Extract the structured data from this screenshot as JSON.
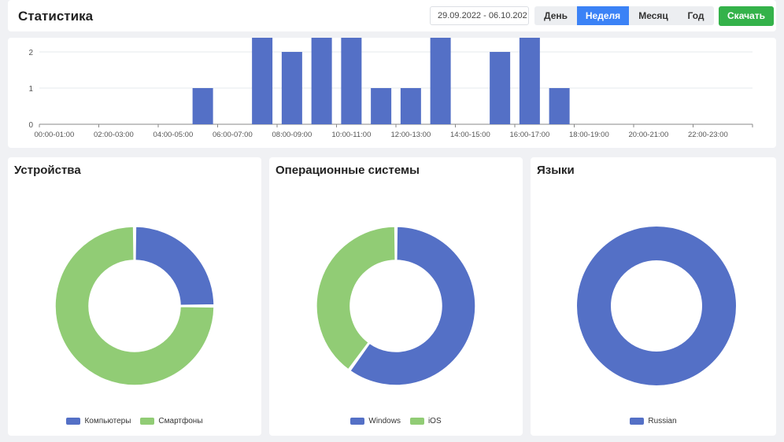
{
  "header": {
    "title": "Статистика",
    "date_range": "29.09.2022 - 06.10.202",
    "periods": [
      "День",
      "Неделя",
      "Месяц",
      "Год"
    ],
    "active_period": "Неделя",
    "download_label": "Скачать"
  },
  "colors": {
    "blue": "#5470c6",
    "green": "#91cc75",
    "accent": "#3b82f6",
    "download": "#34b24a"
  },
  "chart_data": [
    {
      "type": "bar",
      "categories": [
        "00:00-01:00",
        "01:00-02:00",
        "02:00-03:00",
        "03:00-04:00",
        "04:00-05:00",
        "05:00-06:00",
        "06:00-07:00",
        "07:00-08:00",
        "08:00-09:00",
        "09:00-10:00",
        "10:00-11:00",
        "11:00-12:00",
        "12:00-13:00",
        "13:00-14:00",
        "14:00-15:00",
        "15:00-16:00",
        "16:00-17:00",
        "17:00-18:00",
        "18:00-19:00",
        "19:00-20:00",
        "20:00-21:00",
        "21:00-22:00",
        "22:00-23:00",
        "23:00-24:00"
      ],
      "tick_labels": [
        "00:00-01:00",
        "02:00-03:00",
        "04:00-05:00",
        "06:00-07:00",
        "08:00-09:00",
        "10:00-11:00",
        "12:00-13:00",
        "14:00-15:00",
        "16:00-17:00",
        "18:00-19:00",
        "20:00-21:00",
        "22:00-23:00"
      ],
      "values": [
        0,
        0,
        0,
        0,
        0,
        1,
        0,
        3,
        2,
        3,
        3,
        1,
        1,
        3,
        0,
        2,
        3,
        1,
        0,
        0,
        0,
        0,
        0,
        0
      ],
      "y_ticks": [
        "0",
        "1",
        "2"
      ],
      "ylim": [
        0,
        3
      ],
      "grid": true,
      "color": "#5470c6"
    },
    {
      "type": "pie",
      "title": "Устройства",
      "labels": [
        "Компьютеры",
        "Смартфоны"
      ],
      "values": [
        1,
        3
      ],
      "colors": [
        "#5470c6",
        "#91cc75"
      ],
      "legend": "bottom"
    },
    {
      "type": "pie",
      "title": "Операционные системы",
      "labels": [
        "Windows",
        "iOS"
      ],
      "values": [
        3,
        2
      ],
      "colors": [
        "#5470c6",
        "#91cc75"
      ],
      "legend": "bottom"
    },
    {
      "type": "pie",
      "title": "Языки",
      "labels": [
        "Russian"
      ],
      "values": [
        1
      ],
      "colors": [
        "#5470c6"
      ],
      "legend": "bottom"
    }
  ]
}
